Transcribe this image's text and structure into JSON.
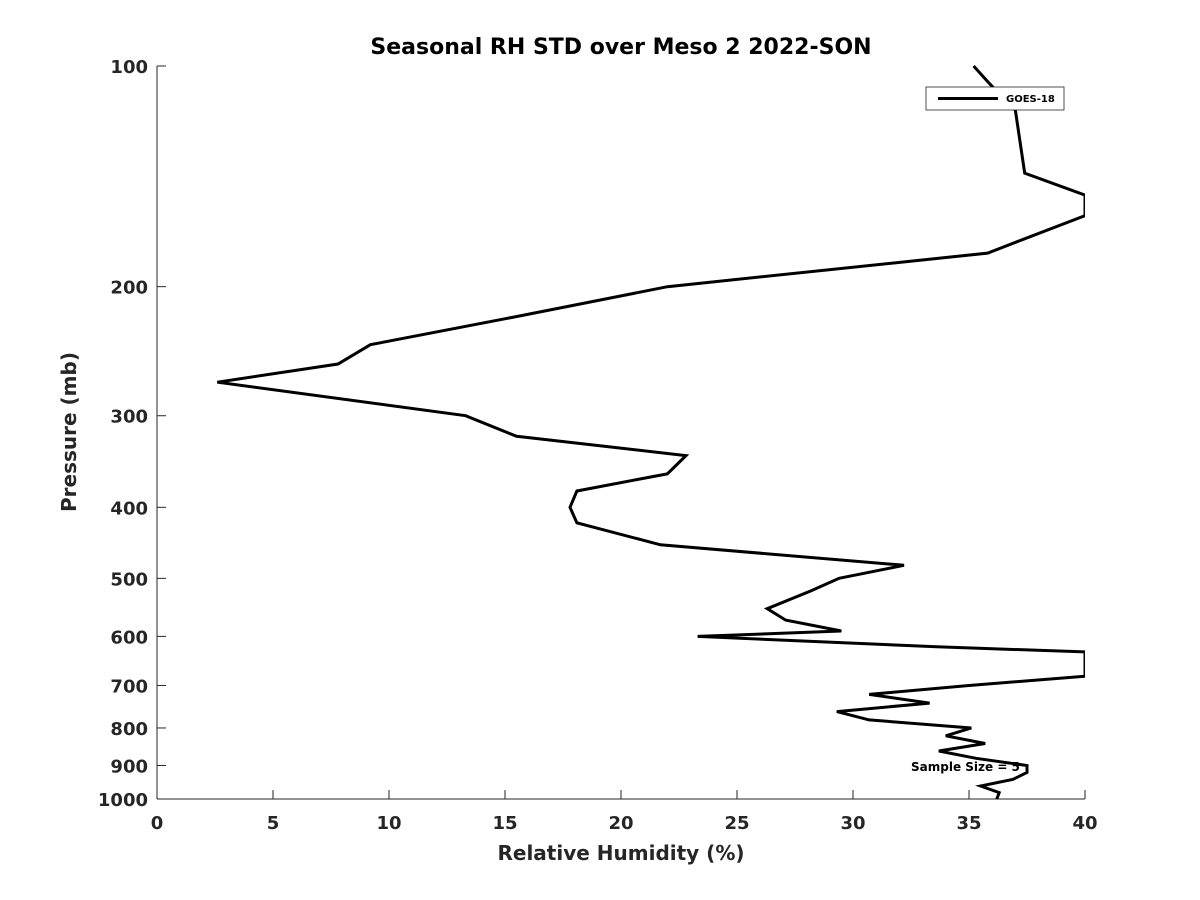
{
  "chart_data": {
    "type": "line",
    "title": "Seasonal RH STD over Meso 2  2022-SON",
    "xlabel": "Relative Humidity (%)",
    "ylabel": "Pressure (mb)",
    "xlim": [
      0,
      40
    ],
    "ylim": [
      100,
      1000
    ],
    "yscale": "log",
    "y_reversed": true,
    "grid": false,
    "legend_position": "top-right",
    "xticks": [
      0,
      5,
      10,
      15,
      20,
      25,
      30,
      35,
      40
    ],
    "yticks": [
      100,
      200,
      300,
      400,
      500,
      600,
      700,
      800,
      900,
      1000
    ],
    "annotation": "Sample Size = 5",
    "series": [
      {
        "name": "GOES-18",
        "color": "#000000",
        "points": [
          [
            35.2,
            100
          ],
          [
            35.8,
            105
          ],
          [
            36.4,
            110
          ],
          [
            37.0,
            115
          ],
          [
            37.4,
            140
          ],
          [
            40.0,
            150
          ],
          [
            40.0,
            160
          ],
          [
            35.8,
            180
          ],
          [
            22.0,
            200
          ],
          [
            15.4,
            220
          ],
          [
            9.2,
            240
          ],
          [
            7.8,
            255
          ],
          [
            2.6,
            270
          ],
          [
            13.3,
            300
          ],
          [
            15.5,
            320
          ],
          [
            22.8,
            340
          ],
          [
            22.0,
            360
          ],
          [
            18.1,
            380
          ],
          [
            17.8,
            400
          ],
          [
            18.1,
            420
          ],
          [
            21.7,
            450
          ],
          [
            32.2,
            480
          ],
          [
            29.4,
            500
          ],
          [
            28.2,
            520
          ],
          [
            26.3,
            550
          ],
          [
            27.1,
            570
          ],
          [
            29.5,
            590
          ],
          [
            23.3,
            600
          ],
          [
            33.6,
            620
          ],
          [
            40.0,
            630
          ],
          [
            40.0,
            680
          ],
          [
            35.0,
            700
          ],
          [
            30.7,
            720
          ],
          [
            33.3,
            740
          ],
          [
            29.3,
            760
          ],
          [
            30.7,
            780
          ],
          [
            35.1,
            800
          ],
          [
            34.0,
            820
          ],
          [
            35.7,
            840
          ],
          [
            33.7,
            860
          ],
          [
            35.3,
            880
          ],
          [
            37.5,
            900
          ],
          [
            37.5,
            920
          ],
          [
            36.9,
            940
          ],
          [
            35.5,
            960
          ],
          [
            36.3,
            980
          ],
          [
            36.2,
            1000
          ]
        ]
      }
    ]
  }
}
